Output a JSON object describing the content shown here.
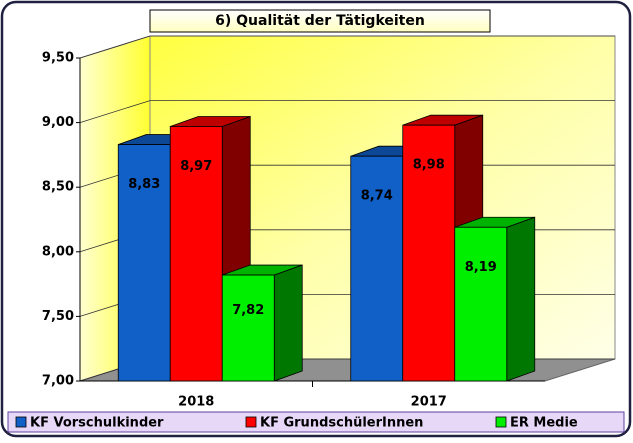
{
  "chart_data": {
    "type": "bar3d",
    "title": "6) Qualität der Tätigkeiten",
    "categories": [
      "2018",
      "2017"
    ],
    "series": [
      {
        "name": "KF Vorschulkinder",
        "color": "#1060c8",
        "values": [
          8.83,
          8.74
        ],
        "value_labels": [
          "8,83",
          "8,74"
        ]
      },
      {
        "name": "KF GrundschülerInnen",
        "color": "#ff0000",
        "values": [
          8.97,
          8.98
        ],
        "value_labels": [
          "8,97",
          "8,98"
        ]
      },
      {
        "name": "ER Medie",
        "color": "#00ee00",
        "values": [
          7.82,
          8.19
        ],
        "value_labels": [
          "7,82",
          "8,19"
        ]
      }
    ],
    "ylim": [
      7,
      9.5
    ],
    "yticks": [
      {
        "value": 7,
        "label": "7,00"
      },
      {
        "value": 7.5,
        "label": "7,50"
      },
      {
        "value": 8,
        "label": "8,00"
      },
      {
        "value": 8.5,
        "label": "8,50"
      },
      {
        "value": 9,
        "label": "9,00"
      },
      {
        "value": 9.5,
        "label": "9,50"
      }
    ],
    "grid": true
  }
}
